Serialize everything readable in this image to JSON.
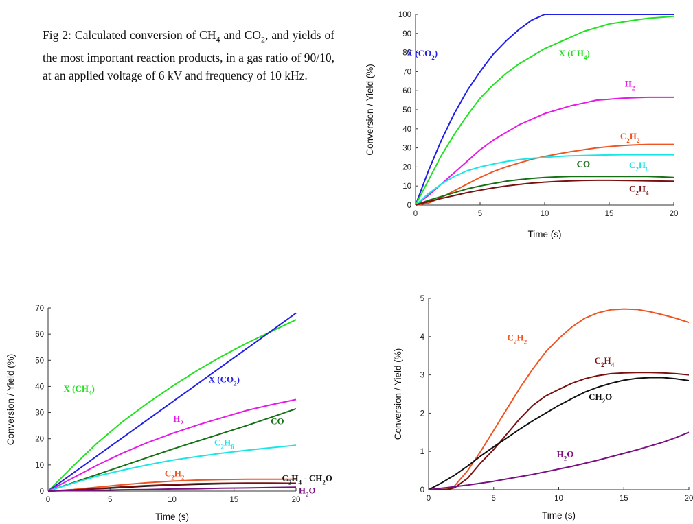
{
  "caption": "Fig 2: Calculated conversion of CH₄ and CO₂, and yields of the most important reaction products, in a gas ratio of 90/10, at an applied voltage of 6 kV and frequency of 10 kHz.",
  "chart_data": [
    {
      "type": "line",
      "xlabel": "Time (s)",
      "ylabel": "Conversion / Yield (%)",
      "xlim": [
        0,
        20
      ],
      "ylim": [
        0,
        100
      ],
      "xticks": [
        0,
        5,
        10,
        15,
        20
      ],
      "yticks": [
        0,
        10,
        20,
        30,
        40,
        50,
        60,
        70,
        80,
        90,
        100
      ],
      "x": [
        0,
        1,
        2,
        3,
        4,
        5,
        6,
        7,
        8,
        9,
        10,
        11,
        12,
        13,
        14,
        15,
        16,
        17,
        18,
        19,
        20
      ],
      "series": [
        {
          "name": "X (CO₂)",
          "color": "#1f1fe8",
          "label_pos": [
            0.5,
            78
          ],
          "values": [
            0,
            18,
            34,
            48,
            60,
            70,
            79,
            86,
            92,
            97,
            100,
            100,
            100,
            100,
            100,
            100,
            100,
            100,
            100,
            100,
            100
          ]
        },
        {
          "name": "X (CH₄)",
          "color": "#22e022",
          "label_pos": [
            12.3,
            78
          ],
          "values": [
            0,
            13,
            26,
            37,
            47,
            56,
            63,
            69,
            74,
            78,
            82,
            85,
            88,
            91,
            93,
            95,
            96,
            97,
            98,
            98.5,
            99
          ]
        },
        {
          "name": "H₂",
          "color": "#e619e6",
          "label_pos": [
            16.6,
            62
          ],
          "values": [
            0,
            5,
            11,
            17,
            23,
            29,
            34,
            38,
            42,
            45,
            48,
            50,
            52,
            53.5,
            55,
            55.5,
            56,
            56.3,
            56.5,
            56.5,
            56.5
          ]
        },
        {
          "name": "C₂H₂",
          "color": "#ee5522",
          "label_pos": [
            16.6,
            34.5
          ],
          "values": [
            0,
            1,
            4,
            7.5,
            11,
            14.5,
            17.5,
            20,
            22,
            24,
            25.5,
            26.8,
            28,
            29,
            30,
            30.7,
            31.2,
            31.6,
            31.8,
            31.8,
            31.8
          ]
        },
        {
          "name": "C₂H₆",
          "color": "#19e6e6",
          "label_pos": [
            17.3,
            19.5
          ],
          "values": [
            0,
            6,
            11,
            15,
            18,
            20,
            21.5,
            22.8,
            23.8,
            24.5,
            25,
            25.5,
            25.8,
            26,
            26.2,
            26.3,
            26.4,
            26.4,
            26.4,
            26.4,
            26.4
          ]
        },
        {
          "name": "CO",
          "color": "#157015",
          "label_pos": [
            13.0,
            20
          ],
          "values": [
            0,
            2.5,
            4.5,
            6.5,
            8.5,
            10,
            11.3,
            12.5,
            13.3,
            14,
            14.5,
            14.8,
            15,
            15,
            15,
            15,
            15,
            15,
            15,
            14.8,
            14.5
          ]
        },
        {
          "name": "C₂H₄",
          "color": "#7a1010",
          "label_pos": [
            17.3,
            7
          ],
          "values": [
            0,
            1.8,
            3.5,
            5,
            6.5,
            7.8,
            9,
            10,
            10.8,
            11.5,
            12,
            12.4,
            12.7,
            12.9,
            13,
            13,
            12.9,
            12.8,
            12.7,
            12.6,
            12.5
          ]
        }
      ]
    },
    {
      "type": "line",
      "xlabel": "Time (s)",
      "ylabel": "Conversion / Yield (%)",
      "xlim": [
        0,
        20
      ],
      "ylim": [
        0,
        70
      ],
      "xticks": [
        0,
        5,
        10,
        15,
        20
      ],
      "yticks": [
        0,
        10,
        20,
        30,
        40,
        50,
        60,
        70
      ],
      "x": [
        0,
        2,
        4,
        6,
        8,
        10,
        12,
        14,
        16,
        18,
        20
      ],
      "series": [
        {
          "name": "X (CH₄)",
          "color": "#22e022",
          "label_pos": [
            2.5,
            38
          ],
          "values": [
            0,
            9.5,
            18.5,
            26.5,
            33.5,
            40,
            46,
            51.5,
            56.5,
            61,
            65.5
          ]
        },
        {
          "name": "X (CO₂)",
          "color": "#1f1fe8",
          "label_pos": [
            14.2,
            41.5
          ],
          "values": [
            0,
            6.8,
            13.6,
            20.4,
            27.2,
            34,
            40.8,
            47.6,
            54.4,
            61.2,
            68
          ]
        },
        {
          "name": "H₂",
          "color": "#e619e6",
          "label_pos": [
            10.5,
            26.5
          ],
          "values": [
            0,
            5,
            10,
            14.5,
            18.5,
            22,
            25.2,
            28,
            30.8,
            33,
            35
          ]
        },
        {
          "name": "CO",
          "color": "#157015",
          "label_pos": [
            18.5,
            25.5
          ],
          "values": [
            0,
            3.2,
            6.4,
            9.6,
            12.8,
            16,
            19,
            22,
            25,
            28.2,
            31.5
          ]
        },
        {
          "name": "C₂H₆",
          "color": "#19e6e6",
          "label_pos": [
            14.2,
            17.5
          ],
          "values": [
            0,
            3,
            5.8,
            8,
            10,
            11.8,
            13.2,
            14.5,
            15.6,
            16.6,
            17.5
          ]
        },
        {
          "name": "C₂H₂",
          "color": "#ee5522",
          "label_pos": [
            10.2,
            5.6
          ],
          "values": [
            0,
            0.6,
            1.5,
            2.4,
            3.2,
            3.8,
            4.2,
            4.4,
            4.5,
            4.5,
            4.5
          ]
        },
        {
          "name": "C₂H₄ - CH₂O",
          "color": "#111111",
          "label_pos": [
            20.9,
            3.8
          ],
          "values": [
            0,
            0.4,
            0.9,
            1.4,
            1.9,
            2.3,
            2.6,
            2.8,
            2.95,
            3,
            3
          ]
        },
        {
          "name": "",
          "color": "#7a1010",
          "values": [
            0,
            0.4,
            1,
            1.6,
            2.1,
            2.5,
            2.8,
            3,
            3.1,
            3.1,
            3
          ]
        },
        {
          "name": "H₂O",
          "color": "#7a1080",
          "label_pos": [
            20.9,
            -0.9
          ],
          "values": [
            0,
            0.2,
            0.3,
            0.5,
            0.6,
            0.8,
            0.9,
            1.1,
            1.2,
            1.4,
            1.5
          ]
        }
      ]
    },
    {
      "type": "line",
      "xlabel": "Time (s)",
      "ylabel": "Conversion / Yield (%)",
      "xlim": [
        0,
        20
      ],
      "ylim": [
        0,
        5
      ],
      "xticks": [
        0,
        5,
        10,
        15,
        20
      ],
      "yticks": [
        0,
        1,
        2,
        3,
        4,
        5
      ],
      "x": [
        0,
        1,
        1.5,
        2,
        3,
        4,
        5,
        6,
        7,
        8,
        9,
        10,
        11,
        12,
        13,
        14,
        15,
        16,
        17,
        18,
        19,
        20
      ],
      "series": [
        {
          "name": "C₂H₂",
          "color": "#ee5522",
          "label_pos": [
            6.8,
            3.9
          ],
          "values": [
            0,
            0,
            0.02,
            0.1,
            0.5,
            1.0,
            1.55,
            2.1,
            2.65,
            3.15,
            3.6,
            3.95,
            4.25,
            4.48,
            4.62,
            4.7,
            4.72,
            4.71,
            4.65,
            4.57,
            4.48,
            4.37
          ]
        },
        {
          "name": "C₂H₄",
          "color": "#7a1010",
          "label_pos": [
            13.5,
            3.3
          ],
          "values": [
            0,
            0,
            0.01,
            0.05,
            0.3,
            0.7,
            1.05,
            1.45,
            1.85,
            2.2,
            2.45,
            2.62,
            2.78,
            2.9,
            2.98,
            3.03,
            3.05,
            3.06,
            3.06,
            3.05,
            3.03,
            3.0
          ]
        },
        {
          "name": "CH₂O",
          "color": "#111111",
          "label_pos": [
            13.2,
            2.35
          ],
          "values": [
            0,
            0.18,
            0.28,
            0.38,
            0.62,
            0.88,
            1.12,
            1.35,
            1.58,
            1.8,
            2.0,
            2.2,
            2.38,
            2.55,
            2.68,
            2.78,
            2.86,
            2.91,
            2.93,
            2.93,
            2.9,
            2.85
          ]
        },
        {
          "name": "H₂O",
          "color": "#7a1080",
          "label_pos": [
            10.5,
            0.85
          ],
          "values": [
            0,
            0.04,
            0.06,
            0.08,
            0.12,
            0.17,
            0.22,
            0.28,
            0.34,
            0.4,
            0.47,
            0.54,
            0.61,
            0.69,
            0.77,
            0.86,
            0.95,
            1.04,
            1.14,
            1.24,
            1.36,
            1.5
          ]
        }
      ]
    }
  ]
}
